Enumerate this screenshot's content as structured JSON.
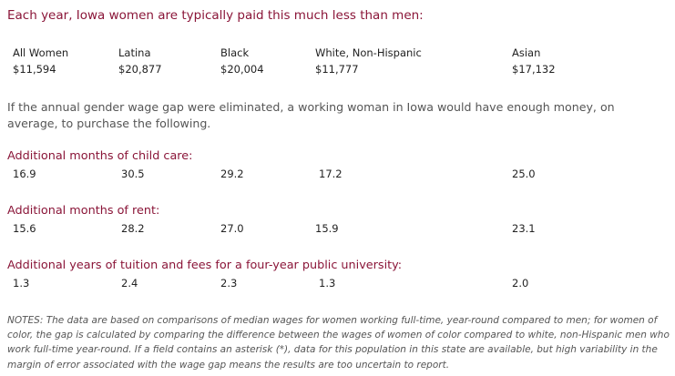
{
  "title": "Each year, Iowa women are typically paid this much less than men:",
  "groups": [
    {
      "label": "All Women",
      "gap": "$11,594"
    },
    {
      "label": "Latina",
      "gap": "$20,877"
    },
    {
      "label": "Black",
      "gap": "$20,004"
    },
    {
      "label": "White, Non-Hispanic",
      "gap": "$11,777"
    },
    {
      "label": "Asian",
      "gap": "$17,132"
    }
  ],
  "intro": "If the annual gender wage gap were eliminated, a working woman in Iowa would have enough money, on average, to purchase the following.",
  "sections": [
    {
      "title": "Additional months of child care:",
      "values": [
        "16.9",
        "30.5",
        "29.2",
        "17.2",
        "25.0"
      ]
    },
    {
      "title": "Additional months of rent:",
      "values": [
        "15.6",
        "28.2",
        "27.0",
        "15.9",
        "23.1"
      ]
    },
    {
      "title": "Additional years of tuition and fees for a four-year public university:",
      "values": [
        "1.3",
        "2.4",
        "2.3",
        "1.3",
        "2.0"
      ]
    }
  ],
  "notes": "NOTES: The data are based on comparisons of median wages for women working full-time, year-round compared to men; for women of color, the gap is calculated by comparing the difference between the wages of women of color compared to white, non-Hispanic men who work full-time year-round. If a field contains an asterisk (*), data for this population in this state are available, but high variability in the margin of error associated with the wage gap means the results are too uncertain to report."
}
